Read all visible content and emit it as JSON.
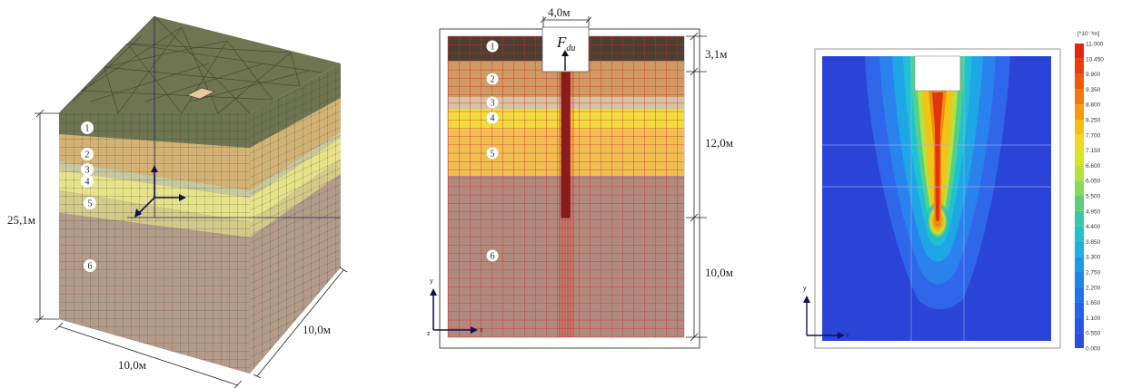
{
  "figure": {
    "panel1": {
      "dims": {
        "height": "25,1м",
        "width_front": "10,0м",
        "width_side": "10,0м"
      },
      "layers": [
        "1",
        "2",
        "3",
        "4",
        "5",
        "6"
      ]
    },
    "panel2": {
      "dims": {
        "pile_width": "4,0м",
        "seg1": "3,1м",
        "seg2": "12,0м",
        "seg3": "10,0м"
      },
      "force_label": "F",
      "force_sub": "du",
      "layers": [
        "1",
        "2",
        "3",
        "4",
        "5",
        "6"
      ],
      "axes": {
        "y": "y",
        "x": "x",
        "z": "z"
      }
    },
    "panel3": {
      "unit": "[*10⁻³m]",
      "legend_values": [
        "11.000",
        "10.450",
        "9.900",
        "9.350",
        "8.800",
        "8.250",
        "7.700",
        "7.150",
        "6.600",
        "6.050",
        "5.500",
        "4.950",
        "4.400",
        "3.850",
        "3.300",
        "2.750",
        "2.200",
        "1.650",
        "1.100",
        "0.550",
        "0.000"
      ],
      "legend_colors": [
        "#e5260d",
        "#ea3d0a",
        "#ef5a09",
        "#f27a0a",
        "#f59b0d",
        "#f5bf12",
        "#f0d81e",
        "#d8e426",
        "#b3e43d",
        "#8ad95b",
        "#5fcc7a",
        "#3cc7a2",
        "#22c2c8",
        "#1db0e0",
        "#1f98e6",
        "#2184ea",
        "#2272ea",
        "#2462e8",
        "#2656e4",
        "#284ddf",
        "#2a44d8"
      ],
      "axes": {
        "y": "y",
        "x": "x"
      }
    }
  }
}
